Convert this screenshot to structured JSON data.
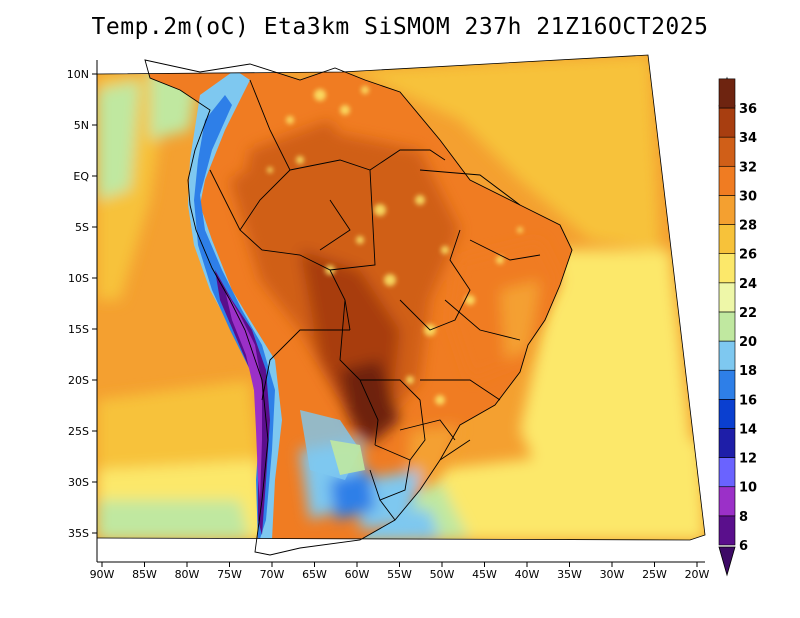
{
  "title": "Temp.2m(oC) Eta3km SiSMOM 237h 21Z16OCT2025",
  "map": {
    "lat_labels": [
      "10N",
      "5N",
      "EQ",
      "5S",
      "10S",
      "15S",
      "20S",
      "25S",
      "30S",
      "35S"
    ],
    "lon_labels": [
      "90W",
      "85W",
      "80W",
      "75W",
      "70W",
      "65W",
      "60W",
      "55W",
      "50W",
      "45W",
      "40W",
      "35W",
      "30W",
      "25W",
      "20W"
    ]
  },
  "colorbar": {
    "levels": [
      "6",
      "8",
      "10",
      "12",
      "14",
      "16",
      "18",
      "20",
      "22",
      "24",
      "26",
      "28",
      "30",
      "32",
      "34",
      "36"
    ],
    "colors": [
      "#5a0f8c",
      "#9b30c8",
      "#6a63ff",
      "#1e1ea8",
      "#0a3fd0",
      "#2e7fe8",
      "#7ec8f0",
      "#c0e8a0",
      "#eef7a8",
      "#fce86a",
      "#f7c23a",
      "#f4a030",
      "#f07c22",
      "#d05f18",
      "#a83e10",
      "#6e2410"
    ],
    "under_color": "#3d0a66",
    "over_color": "#4a1808"
  }
}
